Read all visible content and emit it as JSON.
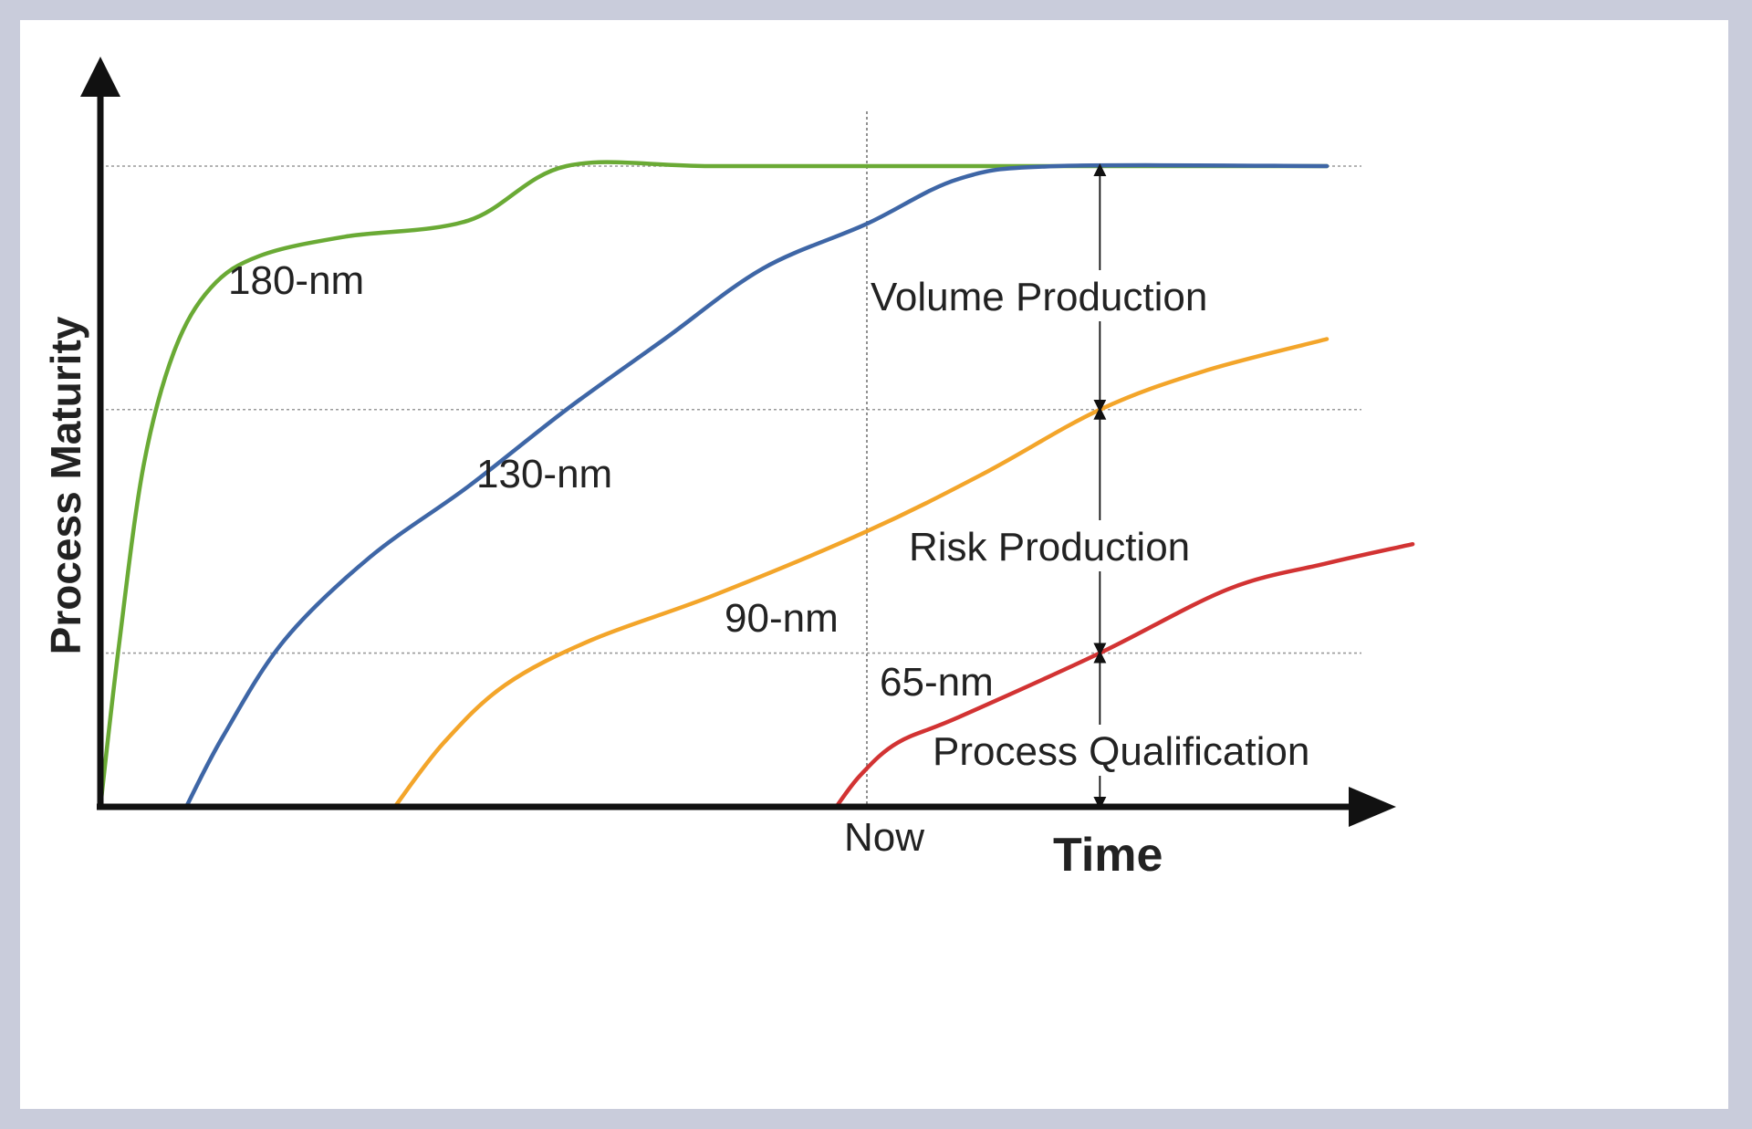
{
  "chart_data": {
    "type": "line",
    "title": "",
    "xlabel": "Time",
    "ylabel": "Process Maturity",
    "xlim": [
      0,
      100
    ],
    "ylim": [
      0,
      100
    ],
    "grid": false,
    "reference_lines": {
      "horizontal": [
        24,
        62,
        100
      ],
      "vertical": [
        {
          "x": 62.5,
          "label": "Now"
        }
      ]
    },
    "stages": [
      {
        "name": "Volume Production",
        "from": 62,
        "to": 100
      },
      {
        "name": "Risk Production",
        "from": 24,
        "to": 62
      },
      {
        "name": "Process Qualification",
        "from": 0,
        "to": 24
      }
    ],
    "stage_marker_x": 81.5,
    "series": [
      {
        "name": "180-nm",
        "color": "#6aaa35",
        "points": [
          [
            0,
            0
          ],
          [
            1.5,
            25
          ],
          [
            3.5,
            53
          ],
          [
            6,
            71
          ],
          [
            9,
            81
          ],
          [
            13,
            86
          ],
          [
            20,
            89
          ],
          [
            30,
            91.5
          ],
          [
            38,
            100
          ],
          [
            50,
            100
          ],
          [
            70,
            100
          ],
          [
            100,
            100
          ]
        ]
      },
      {
        "name": "130-nm",
        "color": "#3e66a6",
        "points": [
          [
            7,
            0
          ],
          [
            10,
            11
          ],
          [
            15,
            26
          ],
          [
            22,
            39
          ],
          [
            30,
            50
          ],
          [
            38,
            62
          ],
          [
            46,
            73
          ],
          [
            54,
            84
          ],
          [
            62.5,
            91
          ],
          [
            70,
            98
          ],
          [
            78,
            100
          ],
          [
            100,
            100
          ]
        ]
      },
      {
        "name": "90-nm",
        "color": "#f3a52a",
        "points": [
          [
            24,
            0
          ],
          [
            28,
            10
          ],
          [
            33,
            19
          ],
          [
            40,
            26
          ],
          [
            50,
            33
          ],
          [
            62.5,
            43
          ],
          [
            72,
            52
          ],
          [
            81.5,
            62
          ],
          [
            90,
            68
          ],
          [
            100,
            73
          ]
        ]
      },
      {
        "name": "65-nm",
        "color": "#d23333",
        "points": [
          [
            60,
            0
          ],
          [
            62,
            5
          ],
          [
            65,
            10
          ],
          [
            70,
            14
          ],
          [
            81.5,
            24
          ],
          [
            92,
            34
          ],
          [
            100,
            38
          ],
          [
            107,
            41
          ]
        ]
      }
    ]
  }
}
